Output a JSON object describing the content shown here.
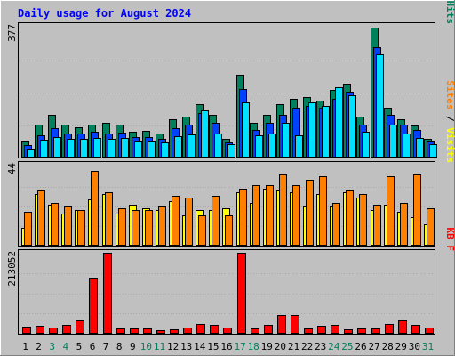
{
  "title": "Daily usage for August 2024",
  "colors": {
    "background": "#C0C0C0",
    "hits": "#00805C",
    "files": "#0040FF",
    "pages": "#00E0FF",
    "visits": "#FFFF00",
    "sites": "#FF8000",
    "kbytes": "#FF0000",
    "title": "#0000FF",
    "weekend_label": "#00805C",
    "weekday_label": "#000000"
  },
  "chart_data": [
    {
      "type": "bar",
      "name": "hits-files-pages",
      "categories": [
        "1",
        "2",
        "3",
        "4",
        "5",
        "6",
        "7",
        "8",
        "9",
        "10",
        "11",
        "12",
        "13",
        "14",
        "15",
        "16",
        "17",
        "18",
        "19",
        "20",
        "21",
        "22",
        "23",
        "24",
        "25",
        "26",
        "27",
        "28",
        "29",
        "30",
        "31"
      ],
      "ymax_label": "377",
      "ylim": [
        0,
        377
      ],
      "legend": [
        {
          "key": "pages",
          "text": "Pages"
        },
        {
          "sep": true,
          "text": " / "
        },
        {
          "key": "files",
          "text": "Files"
        },
        {
          "sep": true,
          "text": " / "
        },
        {
          "key": "hits",
          "text": "Hits"
        }
      ],
      "series": [
        {
          "name": "Hits",
          "values": [
            50,
            95,
            125,
            95,
            88,
            95,
            100,
            95,
            75,
            78,
            70,
            110,
            120,
            155,
            125,
            55,
            240,
            100,
            125,
            155,
            170,
            175,
            165,
            195,
            215,
            120,
            377,
            145,
            110,
            92,
            55
          ]
        },
        {
          "name": "Files",
          "values": [
            35,
            65,
            85,
            70,
            70,
            75,
            70,
            72,
            60,
            60,
            55,
            85,
            95,
            130,
            100,
            45,
            200,
            80,
            100,
            125,
            145,
            150,
            145,
            170,
            190,
            95,
            320,
            125,
            95,
            80,
            50
          ]
        },
        {
          "name": "Pages",
          "values": [
            25,
            52,
            60,
            55,
            55,
            58,
            55,
            58,
            50,
            50,
            45,
            62,
            68,
            138,
            70,
            40,
            160,
            65,
            70,
            100,
            65,
            160,
            150,
            205,
            180,
            75,
            300,
            95,
            70,
            58,
            38
          ]
        }
      ]
    },
    {
      "type": "bar",
      "name": "visits-sites",
      "categories": [
        "1",
        "2",
        "3",
        "4",
        "5",
        "6",
        "7",
        "8",
        "9",
        "10",
        "11",
        "12",
        "13",
        "14",
        "15",
        "16",
        "17",
        "18",
        "19",
        "20",
        "21",
        "22",
        "23",
        "24",
        "25",
        "26",
        "27",
        "28",
        "29",
        "30",
        "31"
      ],
      "ymax_label": "44",
      "ylim": [
        0,
        44
      ],
      "legend": [
        {
          "key": "sites",
          "text": "Sites"
        },
        {
          "sep": true,
          "text": " / "
        },
        {
          "key": "visits",
          "text": "Visits"
        }
      ],
      "series": [
        {
          "name": "Visits",
          "values": [
            10,
            29,
            23,
            18,
            20,
            26,
            29,
            18,
            23,
            21,
            20,
            25,
            17,
            20,
            20,
            21,
            30,
            24,
            32,
            31,
            30,
            22,
            29,
            22,
            30,
            27,
            20,
            23,
            19,
            16,
            12
          ]
        },
        {
          "name": "Sites",
          "values": [
            19,
            31,
            24,
            22,
            20,
            42,
            30,
            21,
            20,
            20,
            22,
            28,
            27,
            17,
            28,
            17,
            32,
            34,
            34,
            40,
            34,
            37,
            39,
            24,
            31,
            29,
            23,
            39,
            24,
            40,
            21
          ]
        }
      ]
    },
    {
      "type": "bar",
      "name": "kbytes",
      "categories": [
        "1",
        "2",
        "3",
        "4",
        "5",
        "6",
        "7",
        "8",
        "9",
        "10",
        "11",
        "12",
        "13",
        "14",
        "15",
        "16",
        "17",
        "18",
        "19",
        "20",
        "21",
        "22",
        "23",
        "24",
        "25",
        "26",
        "27",
        "28",
        "29",
        "30",
        "31"
      ],
      "ymax_label": "213052",
      "ylim": [
        0,
        213052
      ],
      "legend": [
        {
          "key": "kbytes",
          "text": "KB F"
        }
      ],
      "series": [
        {
          "name": "KB F",
          "values": [
            18000,
            21000,
            16000,
            23000,
            35000,
            148000,
            213052,
            15000,
            14000,
            13000,
            10000,
            12000,
            16000,
            25000,
            24000,
            17000,
            213052,
            13000,
            23000,
            48000,
            49000,
            14000,
            22000,
            23000,
            12000,
            13000,
            15000,
            26000,
            34000,
            23000,
            17000
          ]
        }
      ]
    }
  ],
  "days": [
    {
      "label": "1",
      "weekend": false
    },
    {
      "label": "2",
      "weekend": false
    },
    {
      "label": "3",
      "weekend": true
    },
    {
      "label": "4",
      "weekend": true
    },
    {
      "label": "5",
      "weekend": false
    },
    {
      "label": "6",
      "weekend": false
    },
    {
      "label": "7",
      "weekend": false
    },
    {
      "label": "8",
      "weekend": false
    },
    {
      "label": "9",
      "weekend": false
    },
    {
      "label": "10",
      "weekend": true
    },
    {
      "label": "11",
      "weekend": true
    },
    {
      "label": "12",
      "weekend": false
    },
    {
      "label": "13",
      "weekend": false
    },
    {
      "label": "14",
      "weekend": false
    },
    {
      "label": "15",
      "weekend": false
    },
    {
      "label": "16",
      "weekend": false
    },
    {
      "label": "17",
      "weekend": true
    },
    {
      "label": "18",
      "weekend": true
    },
    {
      "label": "19",
      "weekend": false
    },
    {
      "label": "20",
      "weekend": false
    },
    {
      "label": "21",
      "weekend": false
    },
    {
      "label": "22",
      "weekend": false
    },
    {
      "label": "23",
      "weekend": false
    },
    {
      "label": "24",
      "weekend": true
    },
    {
      "label": "25",
      "weekend": true
    },
    {
      "label": "26",
      "weekend": false
    },
    {
      "label": "27",
      "weekend": false
    },
    {
      "label": "28",
      "weekend": false
    },
    {
      "label": "29",
      "weekend": false
    },
    {
      "label": "30",
      "weekend": false
    },
    {
      "label": "31",
      "weekend": true
    }
  ]
}
